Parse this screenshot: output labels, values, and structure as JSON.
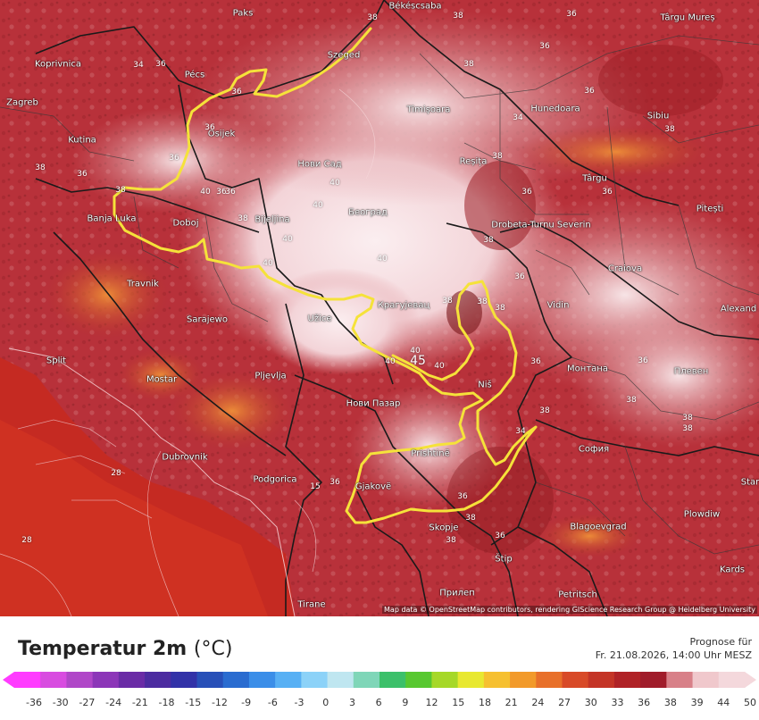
{
  "map": {
    "title_main": "Temperatur 2m",
    "title_unit": "(°C)",
    "forecast_label": "Prognose für",
    "forecast_date": "Fr. 21.08.2026, 14:00 Uhr MESZ",
    "attribution": "Map data © OpenStreetMap contributors, rendering GIScience Research Group @ Heidelberg University",
    "highlight_color": "#f5e23a",
    "cities": [
      "Paks",
      "Békéscsaba",
      "Târgu Mureș",
      "Koprivnica",
      "Pécs",
      "Szeged",
      "Zagreb",
      "Osijek",
      "Timișoara",
      "Hunedoara",
      "Sibiu",
      "Kutina",
      "Нови Сад",
      "Reșița",
      "Târgu",
      "Banja Luka",
      "Doboj",
      "Bijeljina",
      "Београд",
      "Drobeta-Turnu Severin",
      "Pitești",
      "Travnik",
      "Крагујевац",
      "Craiova",
      "Sarajewo",
      "Užice",
      "Vidin",
      "Alexand",
      "Split",
      "Mostar",
      "Pljevlja",
      "Niš",
      "Монтана",
      "Плевен",
      "Нови Пазар",
      "София",
      "Dubrovnik",
      "Prishtinë",
      "Star",
      "Podgorica",
      "Gjakovë",
      "Plowdiw",
      "Skopje",
      "Blagoevgrad",
      "Štip",
      "Kards",
      "Прилеп",
      "Petritsch",
      "Tirane"
    ],
    "temperature_labels": [
      "38",
      "38",
      "36",
      "36",
      "36",
      "36",
      "34",
      "36",
      "36",
      "38",
      "36",
      "38",
      "34",
      "36",
      "38",
      "38",
      "36",
      "36",
      "40",
      "40",
      "40",
      "38",
      "40",
      "40",
      "40",
      "40",
      "45",
      "40",
      "40",
      "38",
      "38",
      "36",
      "38",
      "38",
      "36",
      "36",
      "38",
      "36",
      "36",
      "38",
      "38",
      "38",
      "15",
      "28",
      "28",
      "34",
      "38",
      "36",
      "38",
      "36",
      "38",
      "36"
    ]
  },
  "legend": {
    "ticks": [
      "-36",
      "-30",
      "-27",
      "-24",
      "-21",
      "-18",
      "-15",
      "-12",
      "-9",
      "-6",
      "-3",
      "0",
      "3",
      "6",
      "9",
      "12",
      "15",
      "18",
      "21",
      "24",
      "27",
      "30",
      "33",
      "36",
      "38",
      "39",
      "44",
      "50"
    ],
    "colors": [
      "#ff3cff",
      "#d84ce0",
      "#b047c8",
      "#8c36b8",
      "#6a2ca6",
      "#4c2ca0",
      "#3232a8",
      "#2850b8",
      "#2a6cd0",
      "#3b8ee8",
      "#58b0f4",
      "#8cd2f8",
      "#bfe6f0",
      "#7fd6b8",
      "#3cc06a",
      "#58c830",
      "#a6d828",
      "#e8e830",
      "#f6c030",
      "#f29a2a",
      "#e8702a",
      "#d84a28",
      "#c43426",
      "#b02226",
      "#a01c2a",
      "#d88088",
      "#f0c8cc",
      "#f4d8dc"
    ]
  }
}
